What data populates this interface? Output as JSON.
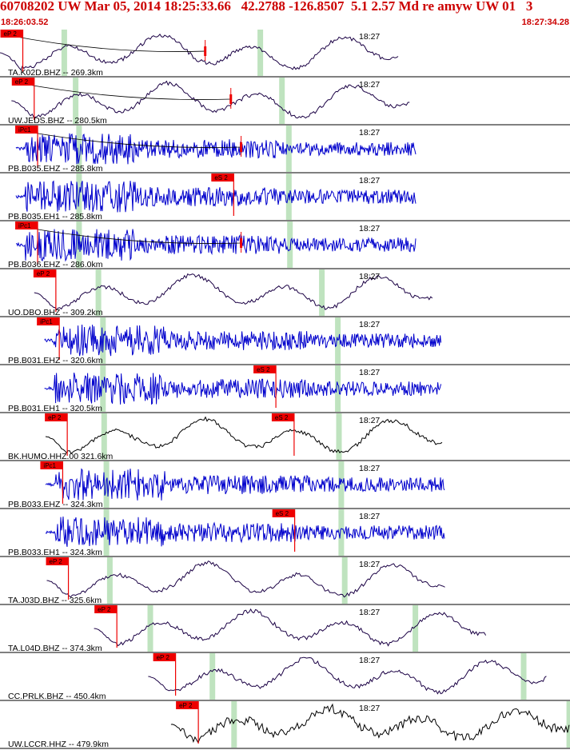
{
  "header": {
    "title": "60708202 UW Mar 05, 2014 18:25:33.66   42.2788 -126.8507  5.1 2.57 Md re amyw UW 01   3",
    "start_time": "18:26:03.52",
    "end_time": "18:27:34.28"
  },
  "colors": {
    "header_text": "#cc0000",
    "pick_box": "#ee0000",
    "theoretical_arrival_band": "#bfe3bf",
    "trace_blue": "#0000cc",
    "trace_black": "#000000",
    "trace_purple": "#220066"
  },
  "traces": [
    {
      "label": "TA.K02D.BHZ -- 269.3km",
      "minute_label": "18:27",
      "type": "lp",
      "color": "#1a0044",
      "start": 0.0,
      "end": 0.7,
      "p_pick": {
        "label": "eP 2",
        "x": 0.04
      },
      "s_pick": null,
      "marker": 0.36,
      "green": [
        0.112,
        0.456
      ],
      "curve": true
    },
    {
      "label": "UW.JEDS.BHZ -- 280.5km",
      "minute_label": "18:27",
      "type": "lp",
      "color": "#1a0044",
      "start": 0.02,
      "end": 0.72,
      "p_pick": {
        "label": "eP 2",
        "x": 0.06
      },
      "s_pick": null,
      "marker": 0.405,
      "green": [
        0.132,
        0.494
      ],
      "curve": true
    },
    {
      "label": "PB.B035.EHZ -- 285.8km",
      "minute_label": "18:27",
      "type": "hf",
      "color": "#0000cc",
      "start": 0.028,
      "end": 0.73,
      "p_pick": {
        "label": "iPc1",
        "x": 0.066
      },
      "s_pick": null,
      "marker": 0.423,
      "green": [
        0.138,
        0.506
      ],
      "curve": true
    },
    {
      "label": "PB.B035.EH1 -- 285.8km",
      "minute_label": "18:27",
      "type": "hf",
      "color": "#0000cc",
      "start": 0.028,
      "end": 0.73,
      "p_pick": null,
      "s_pick": {
        "label": "eS 2",
        "x": 0.41
      },
      "marker": null,
      "green": [
        0.138,
        0.506
      ],
      "curve": false
    },
    {
      "label": "PB.B036.EHZ -- 286.0km",
      "minute_label": "18:27",
      "type": "hf",
      "color": "#0000cc",
      "start": 0.028,
      "end": 0.73,
      "p_pick": {
        "label": "iPc1",
        "x": 0.066
      },
      "s_pick": null,
      "marker": 0.423,
      "green": [
        0.138,
        0.508
      ],
      "curve": true
    },
    {
      "label": "UO.DBO.BHZ -- 309.2km",
      "minute_label": "18:27",
      "type": "lp",
      "color": "#1a0044",
      "start": 0.06,
      "end": 0.76,
      "p_pick": {
        "label": "eP 2",
        "x": 0.098
      },
      "s_pick": null,
      "marker": null,
      "green": [
        0.172,
        0.564
      ],
      "curve": false
    },
    {
      "label": "PB.B031.EHZ -- 320.6km",
      "minute_label": "18:27",
      "type": "hf",
      "color": "#0000cc",
      "start": 0.078,
      "end": 0.775,
      "p_pick": {
        "label": "iPc1",
        "x": 0.104
      },
      "s_pick": null,
      "marker": null,
      "green": [
        0.18,
        0.592
      ],
      "curve": false
    },
    {
      "label": "PB.B031.EH1 -- 320.5km",
      "minute_label": "18:27",
      "type": "hf",
      "color": "#0000cc",
      "start": 0.078,
      "end": 0.775,
      "p_pick": null,
      "s_pick": {
        "label": "eS 2",
        "x": 0.484
      },
      "marker": null,
      "green": [
        0.18,
        0.592
      ],
      "curve": false
    },
    {
      "label": "BK.HUMO.HHZ.00 321.6km",
      "minute_label": "18:27",
      "type": "lp",
      "color": "#000000",
      "start": 0.08,
      "end": 0.778,
      "p_pick": {
        "label": "eP 2",
        "x": 0.118
      },
      "s_pick": {
        "label": "eS 2",
        "x": 0.516
      },
      "marker": null,
      "green": [
        0.182,
        0.594
      ],
      "curve": false
    },
    {
      "label": "PB.B033.EHZ -- 324.3km",
      "minute_label": "18:27",
      "type": "hf",
      "color": "#0000cc",
      "start": 0.08,
      "end": 0.78,
      "p_pick": {
        "label": "iPc1",
        "x": 0.11
      },
      "s_pick": null,
      "marker": null,
      "green": [
        0.186,
        0.598
      ],
      "curve": false
    },
    {
      "label": "PB.B033.EH1 -- 324.3km",
      "minute_label": "18:27",
      "type": "hf",
      "color": "#0000cc",
      "start": 0.08,
      "end": 0.78,
      "p_pick": null,
      "s_pick": {
        "label": "eS 2",
        "x": 0.517
      },
      "marker": null,
      "green": [
        0.186,
        0.598
      ],
      "curve": false
    },
    {
      "label": "TA.J03D.BHZ -- 325.6km",
      "minute_label": "18:27",
      "type": "lp",
      "color": "#1a0044",
      "start": 0.082,
      "end": 0.782,
      "p_pick": {
        "label": "eP 2",
        "x": 0.12
      },
      "s_pick": null,
      "marker": null,
      "green": [
        0.192,
        0.604
      ],
      "curve": false
    },
    {
      "label": "TA.L04D.BHZ -- 374.3km",
      "minute_label": "18:27",
      "type": "lp",
      "color": "#1a0044",
      "start": 0.165,
      "end": 0.853,
      "p_pick": {
        "label": "eP 2",
        "x": 0.205
      },
      "s_pick": null,
      "marker": null,
      "green": [
        0.263,
        0.728
      ],
      "curve": false
    },
    {
      "label": "CC.PRLK.BHZ -- 450.4km",
      "minute_label": "18:27",
      "type": "lp",
      "color": "#1a0044",
      "start": 0.26,
      "end": 0.96,
      "p_pick": {
        "label": "eP 2",
        "x": 0.308
      },
      "s_pick": null,
      "marker": null,
      "green": [
        0.372,
        0.918
      ],
      "curve": false
    },
    {
      "label": "UW.LCCR.HHZ -- 479.9km",
      "minute_label": "18:27",
      "type": "lp_hf",
      "color": "#000000",
      "start": 0.3,
      "end": 1.0,
      "p_pick": {
        "label": "eP 2",
        "x": 0.348
      },
      "s_pick": null,
      "marker": null,
      "green": [
        0.41,
        0.998
      ],
      "curve": false
    }
  ]
}
